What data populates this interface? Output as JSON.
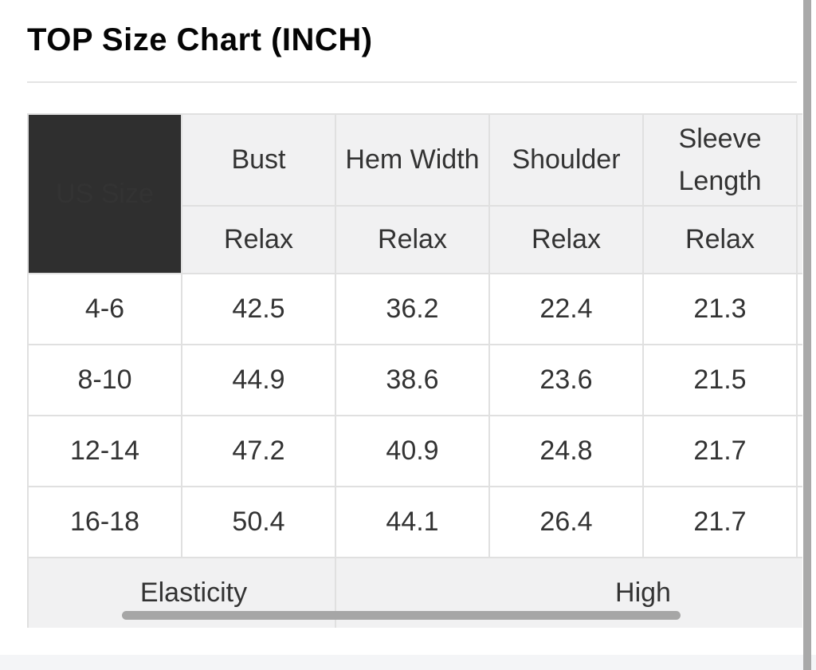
{
  "page": {
    "title": "TOP Size Chart (INCH)"
  },
  "size_chart": {
    "corner_header": "US Size",
    "columns": [
      {
        "label": "Bust",
        "fit": "Relax"
      },
      {
        "label": "Hem Width",
        "fit": "Relax"
      },
      {
        "label": "Shoulder",
        "fit": "Relax"
      },
      {
        "label": "Sleeve Length",
        "fit": "Relax"
      }
    ],
    "rows": [
      {
        "size": "4-6",
        "bust": "42.5",
        "hem_width": "36.2",
        "shoulder": "22.4",
        "sleeve_length": "21.3"
      },
      {
        "size": "8-10",
        "bust": "44.9",
        "hem_width": "38.6",
        "shoulder": "23.6",
        "sleeve_length": "21.5"
      },
      {
        "size": "12-14",
        "bust": "47.2",
        "hem_width": "40.9",
        "shoulder": "24.8",
        "sleeve_length": "21.7"
      },
      {
        "size": "16-18",
        "bust": "50.4",
        "hem_width": "44.1",
        "shoulder": "26.4",
        "sleeve_length": "21.7"
      }
    ],
    "elasticity": {
      "label": "Elasticity",
      "value": "High"
    }
  },
  "colors": {
    "corner_bg": "#2f2f2f",
    "header_bg": "#f1f1f2",
    "cell_border": "#e0e0e0",
    "text": "#333333",
    "scrollbar_thumb": "#a6a6a6",
    "bottom_band": "#f4f5f7"
  }
}
